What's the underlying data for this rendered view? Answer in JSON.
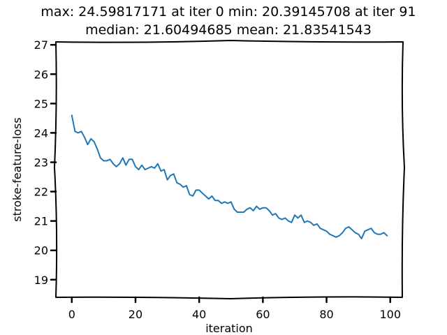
{
  "chart_data": {
    "type": "line",
    "title_line1": "max: 24.59817171 at iter 0 min: 20.39145708 at iter 91",
    "title_line2": "median: 21.60494685 mean: 21.83541543",
    "xlabel": "iteration",
    "ylabel": "stroke-feature-loss",
    "xlim": [
      -5,
      104
    ],
    "ylim": [
      18.4,
      27.1
    ],
    "xticks": [
      0,
      20,
      40,
      60,
      80,
      100
    ],
    "yticks": [
      19,
      20,
      21,
      22,
      23,
      24,
      25,
      26,
      27
    ],
    "line_color": "#1f77b4",
    "grid": false,
    "series": [
      {
        "x": [
          0,
          1,
          2,
          3,
          4,
          5,
          6,
          7,
          8,
          9,
          10,
          11,
          12,
          13,
          14,
          15,
          16,
          17,
          18,
          19,
          20,
          21,
          22,
          23,
          24,
          25,
          26,
          27,
          28,
          29,
          30,
          31,
          32,
          33,
          34,
          35,
          36,
          37,
          38,
          39,
          40,
          41,
          42,
          43,
          44,
          45,
          46,
          47,
          48,
          49,
          50,
          51,
          52,
          53,
          54,
          55,
          56,
          57,
          58,
          59,
          60,
          61,
          62,
          63,
          64,
          65,
          66,
          67,
          68,
          69,
          70,
          71,
          72,
          73,
          74,
          75,
          76,
          77,
          78,
          79,
          80,
          81,
          82,
          83,
          84,
          85,
          86,
          87,
          88,
          89,
          90,
          91,
          92,
          93,
          94,
          95,
          96,
          97,
          98,
          99
        ],
        "y": [
          24.6,
          24.05,
          24.0,
          24.05,
          23.85,
          23.6,
          23.8,
          23.7,
          23.45,
          23.15,
          23.05,
          23.05,
          23.1,
          22.95,
          22.85,
          22.95,
          23.15,
          22.9,
          23.1,
          23.1,
          22.85,
          22.75,
          22.9,
          22.75,
          22.8,
          22.85,
          22.8,
          22.95,
          22.7,
          22.75,
          22.4,
          22.55,
          22.6,
          22.3,
          22.25,
          22.15,
          22.2,
          21.9,
          21.85,
          22.05,
          22.05,
          21.95,
          21.85,
          21.75,
          21.85,
          21.7,
          21.7,
          21.6,
          21.65,
          21.6,
          21.65,
          21.4,
          21.3,
          21.3,
          21.3,
          21.4,
          21.45,
          21.35,
          21.5,
          21.4,
          21.45,
          21.45,
          21.35,
          21.2,
          21.25,
          21.1,
          21.05,
          21.1,
          21.0,
          20.95,
          21.2,
          21.1,
          21.2,
          20.95,
          21.0,
          20.95,
          20.85,
          20.9,
          20.75,
          20.7,
          20.65,
          20.55,
          20.5,
          20.45,
          20.5,
          20.6,
          20.75,
          20.8,
          20.7,
          20.6,
          20.55,
          20.4,
          20.65,
          20.7,
          20.75,
          20.6,
          20.55,
          20.55,
          20.6,
          20.5
        ]
      }
    ]
  }
}
